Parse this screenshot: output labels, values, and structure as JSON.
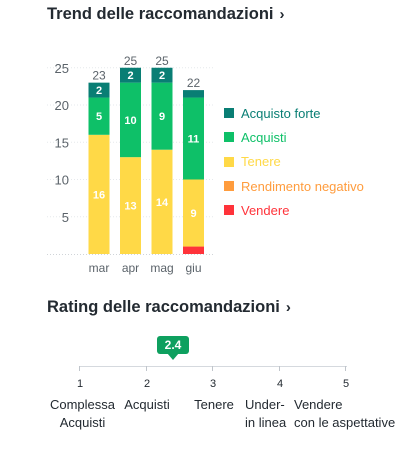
{
  "trend": {
    "title": "Trend delle raccomandazioni",
    "chevron": "›",
    "legend": [
      {
        "label": "Acquisto forte",
        "color": "#097e74"
      },
      {
        "label": "Acquisti",
        "color": "#0ec068"
      },
      {
        "label": "Tenere",
        "color": "#ffd947"
      },
      {
        "label": "Rendimento negativo",
        "color": "#ff9c3d"
      },
      {
        "label": "Vendere",
        "color": "#ff333a"
      }
    ]
  },
  "chart_data": {
    "type": "bar",
    "stacked": true,
    "categories": [
      "mar",
      "apr",
      "mag",
      "giu"
    ],
    "series": [
      {
        "name": "Vendere",
        "color": "#ff333a",
        "values": [
          0,
          0,
          0,
          1
        ]
      },
      {
        "name": "Rendimento negativo",
        "color": "#ff9c3d",
        "values": [
          0,
          0,
          0,
          0
        ]
      },
      {
        "name": "Tenere",
        "color": "#ffd947",
        "values": [
          16,
          13,
          14,
          9
        ]
      },
      {
        "name": "Acquisti",
        "color": "#0ec068",
        "values": [
          5,
          10,
          9,
          11
        ]
      },
      {
        "name": "Acquisto forte",
        "color": "#097e74",
        "values": [
          2,
          2,
          2,
          1
        ]
      }
    ],
    "totals": [
      23,
      25,
      25,
      22
    ],
    "yticks": [
      5,
      10,
      15,
      20,
      25
    ],
    "ylim": [
      0,
      26
    ],
    "grid": true,
    "legend_position": "right"
  },
  "rating": {
    "title": "Rating delle raccomandazioni",
    "chevron": "›",
    "value": "2.4",
    "value_num": 2.4,
    "color": "#0ea05f",
    "scale": [
      {
        "num": "1",
        "label": "Complessa\nAcquisti"
      },
      {
        "num": "2",
        "label": "Acquisti"
      },
      {
        "num": "3",
        "label": "Tenere"
      },
      {
        "num": "4",
        "label": "Under-\nin linea"
      },
      {
        "num": "5",
        "label": "Vendere\ncon le aspettative"
      }
    ]
  }
}
